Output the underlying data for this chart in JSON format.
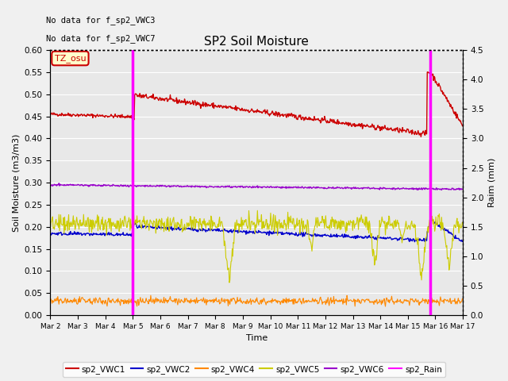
{
  "title": "SP2 Soil Moisture",
  "ylabel_left": "Soil Moisture (m3/m3)",
  "ylabel_right": "Raim (mm)",
  "xlabel": "Time",
  "no_data_text": [
    "No data for f_sp2_VWC3",
    "No data for f_sp2_VWC7"
  ],
  "tz_label": "TZ_osu",
  "ylim_left": [
    0.0,
    0.6
  ],
  "ylim_right": [
    0.0,
    4.5
  ],
  "yticks_left": [
    0.0,
    0.05,
    0.1,
    0.15,
    0.2,
    0.25,
    0.3,
    0.35,
    0.4,
    0.45,
    0.5,
    0.55,
    0.6
  ],
  "yticks_right": [
    0.0,
    0.5,
    1.0,
    1.5,
    2.0,
    2.5,
    3.0,
    3.5,
    4.0,
    4.5
  ],
  "colors": {
    "vwc1": "#cc0000",
    "vwc2": "#0000cc",
    "vwc4": "#ff8800",
    "vwc5": "#cccc00",
    "vwc6": "#9900cc",
    "rain": "#ff00ff"
  },
  "bg_color": "#e8e8e8",
  "grid_color": "#ffffff",
  "fig_bg": "#f0f0f0",
  "total_days": 15.0,
  "rain_event_days": [
    3.0,
    13.8
  ],
  "rain_bar_width": 0.12,
  "tz_box_facecolor": "#ffffcc",
  "tz_box_edgecolor": "#cc0000",
  "legend_labels": [
    "sp2_VWC1",
    "sp2_VWC2",
    "sp2_VWC4",
    "sp2_VWC5",
    "sp2_VWC6",
    "sp2_Rain"
  ]
}
